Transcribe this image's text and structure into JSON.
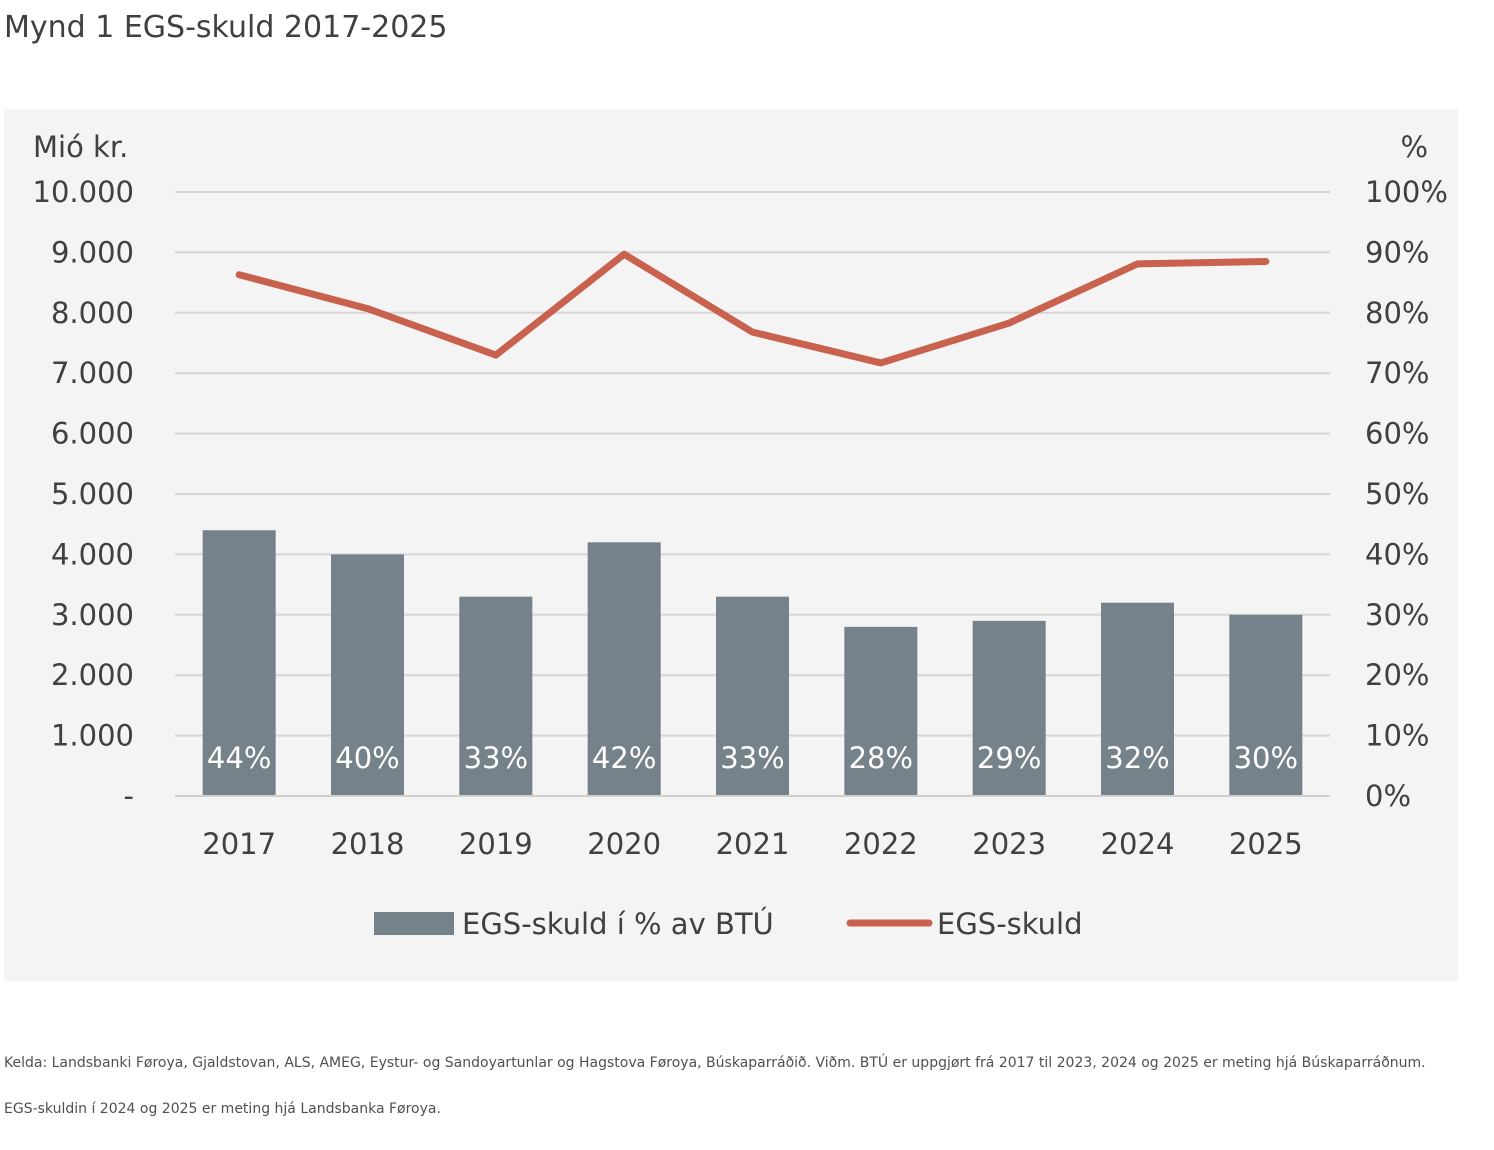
{
  "title": "Mynd 1 EGS-skuld 2017-2025",
  "chart_data": {
    "type": "bar",
    "categories": [
      "2017",
      "2018",
      "2019",
      "2020",
      "2021",
      "2022",
      "2023",
      "2024",
      "2025"
    ],
    "series": [
      {
        "name": "EGS-skuld í % av BTÚ",
        "type": "bar",
        "axis": "right",
        "values": [
          44,
          40,
          33,
          42,
          33,
          28,
          29,
          32,
          30
        ],
        "labels": [
          "44%",
          "40%",
          "33%",
          "42%",
          "33%",
          "28%",
          "29%",
          "32%",
          "30%"
        ],
        "color": "#76828a"
      },
      {
        "name": "EGS-skuld",
        "type": "line",
        "axis": "left",
        "values": [
          8630,
          8070,
          7300,
          8970,
          7680,
          7170,
          7830,
          8810,
          8850
        ],
        "color": "#c9614f"
      }
    ],
    "y_left": {
      "label": "Mió kr.",
      "range": [
        0,
        10000
      ],
      "ticks": [
        "-",
        "1.000",
        "2.000",
        "3.000",
        "4.000",
        "5.000",
        "6.000",
        "7.000",
        "8.000",
        "9.000",
        "10.000"
      ]
    },
    "y_right": {
      "label": "%",
      "range": [
        0,
        100
      ],
      "ticks": [
        "0%",
        "10%",
        "20%",
        "30%",
        "40%",
        "50%",
        "60%",
        "70%",
        "80%",
        "90%",
        "100%"
      ]
    },
    "grid": true,
    "legend": "bottom",
    "background": "#f4f4f4"
  },
  "notes": [
    "Kelda: Landsbanki Føroya, Gjaldstovan, ALS, AMEG, Eystur- og Sandoyartunlar og Hagstova Føroya, Búskaparráðið. Viðm. BTÚ er uppgjørt frá 2017 til 2023, 2024 og 2025 er meting hjá Búskaparráðnum.",
    "EGS-skuldin í 2024 og 2025 er meting hjá Landsbanka Føroya."
  ]
}
